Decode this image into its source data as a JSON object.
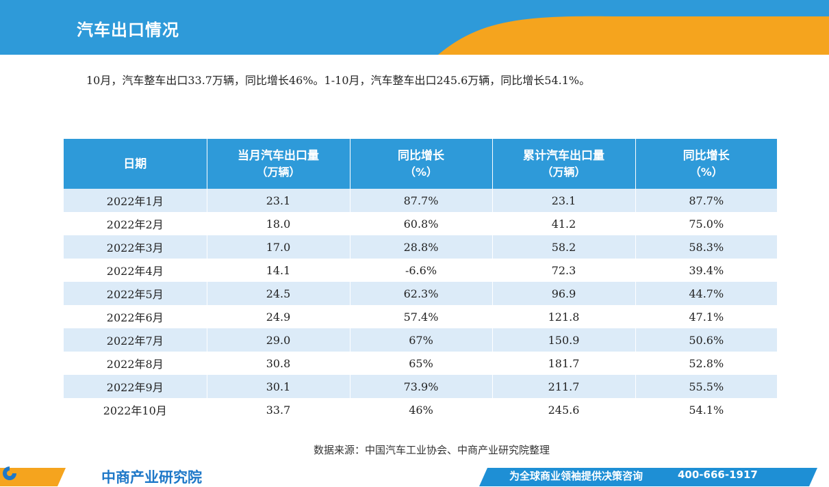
{
  "header": {
    "title": "汽车出口情况"
  },
  "summary": {
    "text": "10月，汽车整车出口33.7万辆，同比增长46%。1-10月，汽车整车出口245.6万辆，同比增长54.1%。"
  },
  "table": {
    "headers": [
      {
        "label": "日期",
        "unit": ""
      },
      {
        "label": "当月汽车出口量",
        "unit": "（万辆）"
      },
      {
        "label": "同比增长",
        "unit": "（%）"
      },
      {
        "label": "累计汽车出口量",
        "unit": "（万辆）"
      },
      {
        "label": "同比增长",
        "unit": "（%）"
      }
    ],
    "rows": [
      [
        "2022年1月",
        "23.1",
        "87.7%",
        "23.1",
        "87.7%"
      ],
      [
        "2022年2月",
        "18.0",
        "60.8%",
        "41.2",
        "75.0%"
      ],
      [
        "2022年3月",
        "17.0",
        "28.8%",
        "58.2",
        "58.3%"
      ],
      [
        "2022年4月",
        "14.1",
        "-6.6%",
        "72.3",
        "39.4%"
      ],
      [
        "2022年5月",
        "24.5",
        "62.3%",
        "96.9",
        "44.7%"
      ],
      [
        "2022年6月",
        "24.9",
        "57.4%",
        "121.8",
        "47.1%"
      ],
      [
        "2022年7月",
        "29.0",
        "67%",
        "150.9",
        "50.6%"
      ],
      [
        "2022年8月",
        "30.8",
        "65%",
        "181.7",
        "52.8%"
      ],
      [
        "2022年9月",
        "30.1",
        "73.9%",
        "211.7",
        "55.5%"
      ],
      [
        "2022年10月",
        "33.7",
        "46%",
        "245.6",
        "54.1%"
      ]
    ]
  },
  "source": {
    "text": "数据来源：中国汽车工业协会、中商产业研究院整理"
  },
  "footer": {
    "brand": "中商产业研究院",
    "slogan": "为全球商业领袖提供决策咨询",
    "phone": "400-666-1917"
  },
  "colors": {
    "header_blue": "#2e9ad9",
    "header_orange": "#f5a41e",
    "row_alt": "#dcebf8",
    "footer_blue": "#1e8fd5",
    "brand_blue": "#1e78c8"
  }
}
